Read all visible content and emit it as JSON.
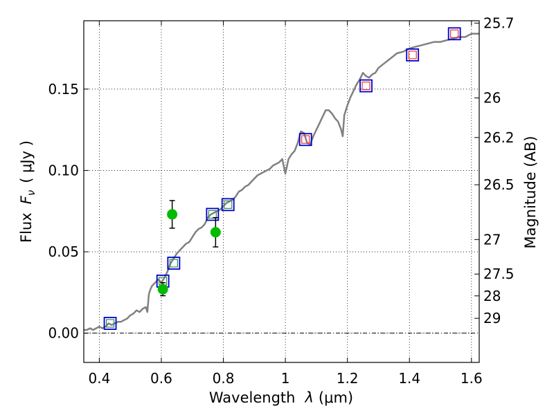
{
  "chart_data": {
    "type": "scatter",
    "xlabel": "Wavelength  λ (μm)",
    "ylabel": "Flux  F_ν  ( μJy )",
    "ylabel_parts": {
      "prefix": "Flux",
      "symbol": "F",
      "subscript": "ν",
      "unit": "( μJy )"
    },
    "xlabel_parts": {
      "prefix": "Wavelength",
      "symbol": "λ",
      "unit": "(μm)"
    },
    "y2label": "Magnitude (AB)",
    "xlim": [
      0.35,
      1.625
    ],
    "ylim": [
      -0.018,
      0.192
    ],
    "grid": true,
    "xticks": [
      {
        "value": 0.4,
        "label": "0.4"
      },
      {
        "value": 0.6,
        "label": "0.6"
      },
      {
        "value": 0.8,
        "label": "0.8"
      },
      {
        "value": 1.0,
        "label": "1"
      },
      {
        "value": 1.2,
        "label": "1.2"
      },
      {
        "value": 1.4,
        "label": "1.4"
      },
      {
        "value": 1.6,
        "label": "1.6"
      }
    ],
    "yticks": [
      {
        "value": 0.0,
        "label": "0.00"
      },
      {
        "value": 0.05,
        "label": "0.05"
      },
      {
        "value": 0.1,
        "label": "0.10"
      },
      {
        "value": 0.15,
        "label": "0.15"
      }
    ],
    "y2ticks": [
      {
        "mag": 25.7,
        "label": "25.7"
      },
      {
        "mag": 26.0,
        "label": "26"
      },
      {
        "mag": 26.2,
        "label": "26.2"
      },
      {
        "mag": 26.5,
        "label": "26.5"
      },
      {
        "mag": 27.0,
        "label": "27"
      },
      {
        "mag": 27.5,
        "label": "27.5"
      },
      {
        "mag": 28.0,
        "label": "28"
      },
      {
        "mag": 29.0,
        "label": "29"
      }
    ],
    "model_spectrum": {
      "color": "#808080",
      "x": [
        0.35,
        0.36,
        0.37,
        0.38,
        0.39,
        0.4,
        0.41,
        0.42,
        0.43,
        0.44,
        0.45,
        0.46,
        0.47,
        0.48,
        0.49,
        0.5,
        0.51,
        0.52,
        0.53,
        0.54,
        0.55,
        0.555,
        0.56,
        0.565,
        0.57,
        0.58,
        0.59,
        0.6,
        0.61,
        0.62,
        0.63,
        0.64,
        0.65,
        0.66,
        0.67,
        0.68,
        0.69,
        0.7,
        0.71,
        0.72,
        0.73,
        0.74,
        0.75,
        0.76,
        0.77,
        0.78,
        0.79,
        0.8,
        0.81,
        0.82,
        0.83,
        0.84,
        0.85,
        0.86,
        0.87,
        0.88,
        0.89,
        0.9,
        0.91,
        0.92,
        0.93,
        0.94,
        0.95,
        0.96,
        0.97,
        0.98,
        0.99,
        1.0,
        1.01,
        1.02,
        1.03,
        1.04,
        1.05,
        1.06,
        1.07,
        1.08,
        1.09,
        1.1,
        1.11,
        1.12,
        1.13,
        1.14,
        1.15,
        1.16,
        1.17,
        1.18,
        1.185,
        1.19,
        1.2,
        1.21,
        1.22,
        1.23,
        1.24,
        1.25,
        1.26,
        1.27,
        1.28,
        1.29,
        1.3,
        1.32,
        1.34,
        1.36,
        1.38,
        1.4,
        1.42,
        1.44,
        1.46,
        1.48,
        1.5,
        1.52,
        1.54,
        1.56,
        1.58,
        1.6,
        1.625
      ],
      "y": [
        0.002,
        0.002,
        0.003,
        0.002,
        0.003,
        0.004,
        0.003,
        0.004,
        0.006,
        0.005,
        0.006,
        0.007,
        0.007,
        0.008,
        0.009,
        0.011,
        0.012,
        0.014,
        0.013,
        0.015,
        0.016,
        0.013,
        0.024,
        0.027,
        0.029,
        0.031,
        0.033,
        0.031,
        0.034,
        0.038,
        0.043,
        0.046,
        0.049,
        0.051,
        0.053,
        0.055,
        0.056,
        0.059,
        0.062,
        0.064,
        0.065,
        0.067,
        0.071,
        0.073,
        0.074,
        0.075,
        0.076,
        0.078,
        0.08,
        0.081,
        0.082,
        0.084,
        0.087,
        0.088,
        0.09,
        0.091,
        0.093,
        0.095,
        0.097,
        0.098,
        0.099,
        0.1,
        0.101,
        0.103,
        0.104,
        0.105,
        0.107,
        0.098,
        0.107,
        0.11,
        0.112,
        0.117,
        0.124,
        0.123,
        0.117,
        0.116,
        0.121,
        0.125,
        0.129,
        0.133,
        0.137,
        0.137,
        0.135,
        0.132,
        0.13,
        0.125,
        0.121,
        0.134,
        0.14,
        0.145,
        0.149,
        0.153,
        0.156,
        0.16,
        0.158,
        0.157,
        0.159,
        0.16,
        0.163,
        0.166,
        0.169,
        0.172,
        0.173,
        0.175,
        0.176,
        0.177,
        0.178,
        0.179,
        0.179,
        0.18,
        0.181,
        0.182,
        0.182,
        0.184,
        0.184
      ]
    },
    "observed_points": {
      "color": "#00bb00",
      "points": [
        {
          "x": 0.605,
          "y": 0.027,
          "err": 0.004
        },
        {
          "x": 0.635,
          "y": 0.073,
          "err": 0.0085
        },
        {
          "x": 0.775,
          "y": 0.062,
          "err": 0.009
        }
      ]
    },
    "model_photometry": {
      "edge_color": "#0000cc",
      "points": [
        {
          "x": 0.435,
          "y": 0.006,
          "inner": "#2e8b57"
        },
        {
          "x": 0.605,
          "y": 0.032,
          "inner": "#2e8b57"
        },
        {
          "x": 0.64,
          "y": 0.043,
          "inner": "#2e8b57"
        },
        {
          "x": 0.765,
          "y": 0.073,
          "inner": "#2e8b57"
        },
        {
          "x": 0.815,
          "y": 0.079,
          "inner": "#2e8b57"
        },
        {
          "x": 1.065,
          "y": 0.119,
          "inner": "#ee3333"
        },
        {
          "x": 1.26,
          "y": 0.152,
          "inner": "#ee3333"
        },
        {
          "x": 1.41,
          "y": 0.171,
          "inner": "#ee3333"
        },
        {
          "x": 1.545,
          "y": 0.184,
          "inner": "#ee3333"
        }
      ]
    }
  }
}
